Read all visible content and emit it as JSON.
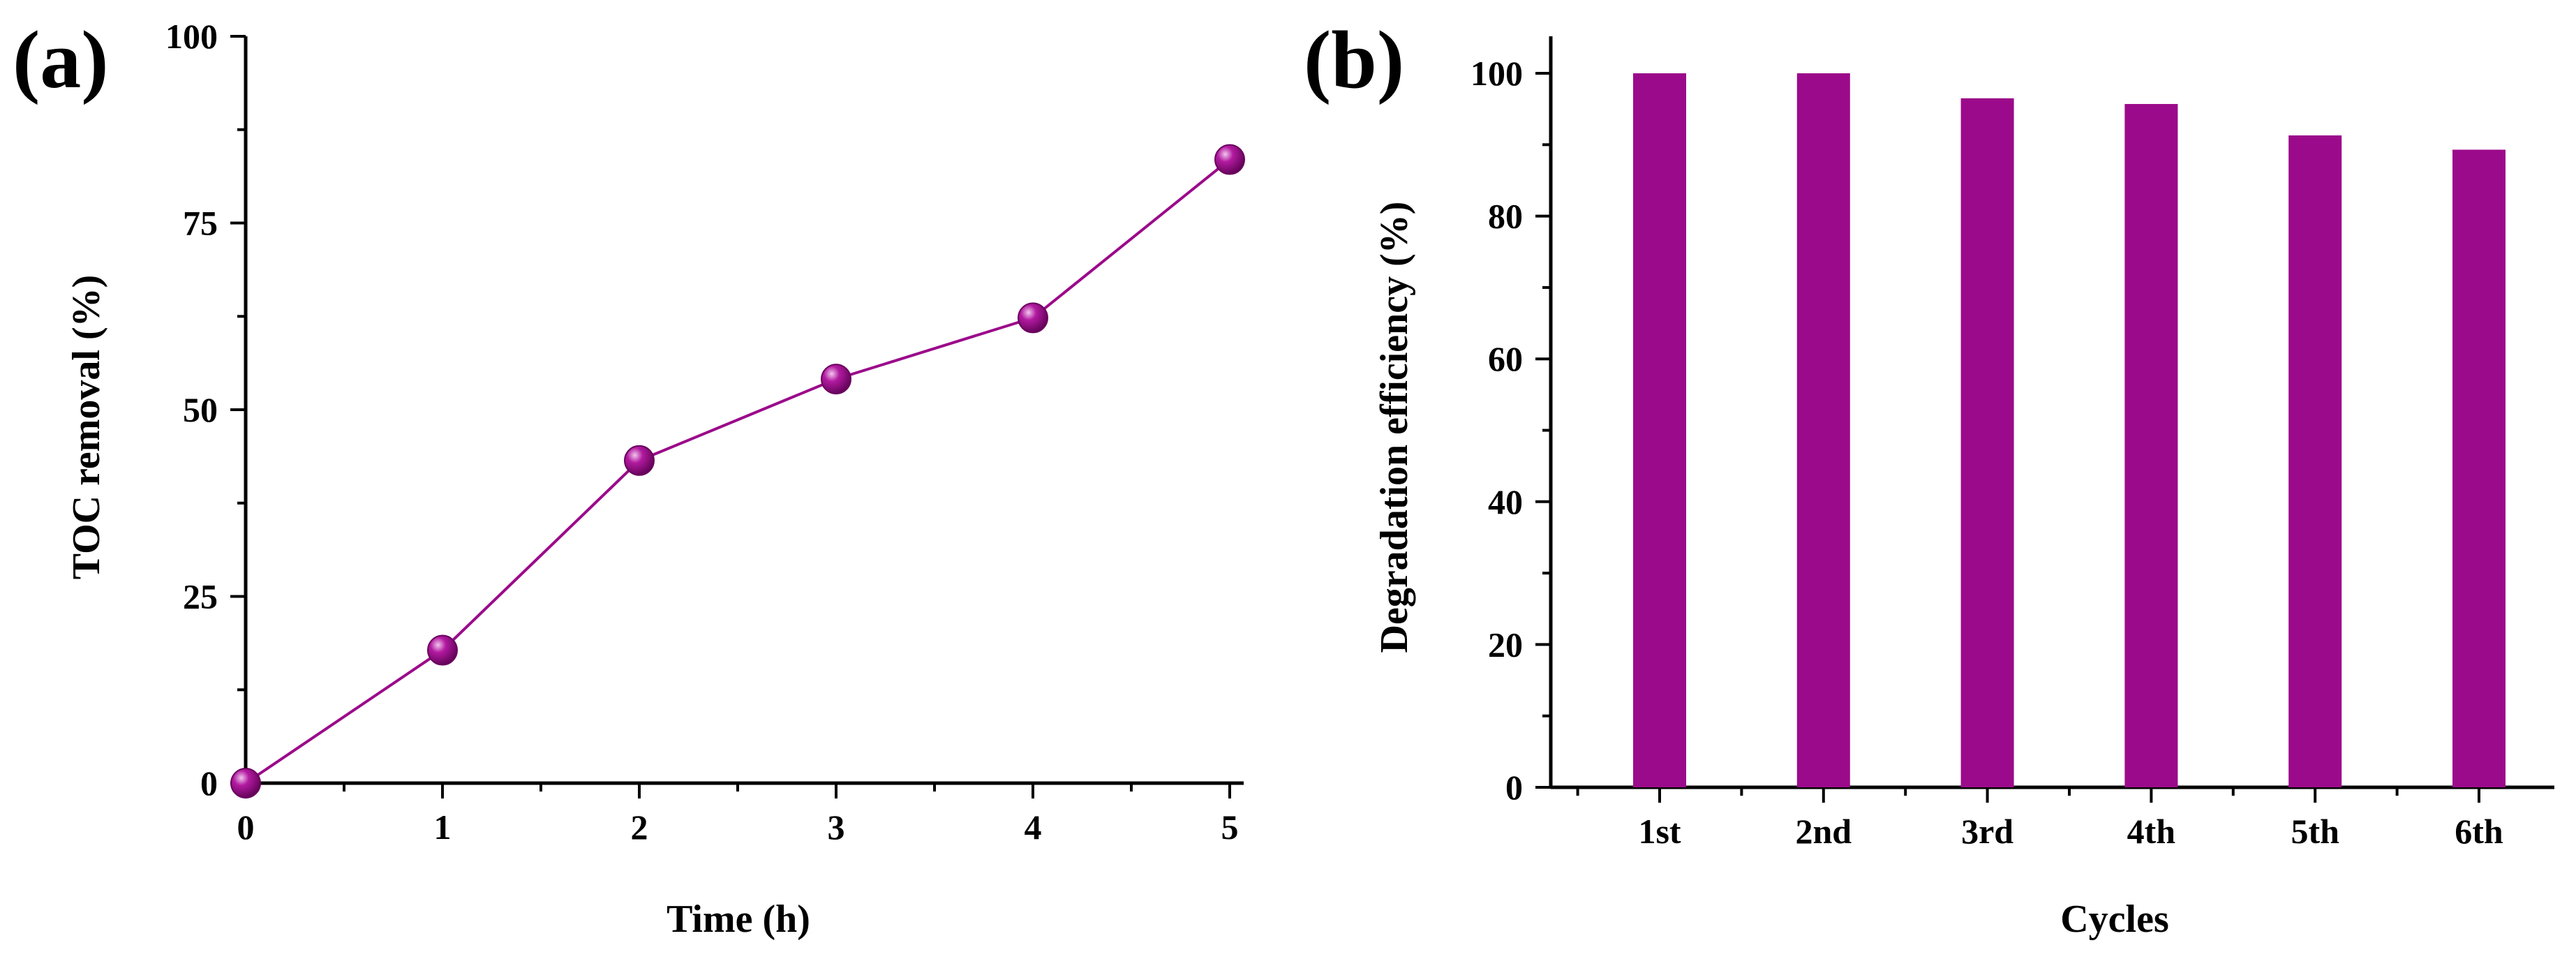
{
  "colors": {
    "series": "#9b0a8a",
    "marker_highlight": "#f2c6ee",
    "marker_shadow": "#5a0050",
    "axis": "#000000"
  },
  "chart_data": [
    {
      "panel": "(a)",
      "type": "line",
      "title": "",
      "xlabel": "Time (h)",
      "ylabel": "TOC removal (%)",
      "x": [
        0,
        1,
        2,
        3,
        4,
        5
      ],
      "series": [
        {
          "name": "TOC removal",
          "values": [
            0,
            17.8,
            43.2,
            54.1,
            62.3,
            83.5
          ]
        }
      ],
      "xlim": [
        0,
        5
      ],
      "ylim": [
        0,
        100
      ],
      "xticks": [
        0,
        1,
        2,
        3,
        4,
        5
      ],
      "yticks": [
        0,
        25,
        50,
        75,
        100
      ],
      "x_tick_labels": [
        "0",
        "1",
        "2",
        "3",
        "4",
        "5"
      ],
      "y_tick_labels": [
        "0",
        "25",
        "50",
        "75",
        "100"
      ],
      "grid": false,
      "marker": "sphere"
    },
    {
      "panel": "(b)",
      "type": "bar",
      "title": "",
      "xlabel": "Cycles",
      "ylabel": "Degradation efficiency (%)",
      "categories": [
        "1st",
        "2nd",
        "3rd",
        "4th",
        "5th",
        "6th"
      ],
      "series": [
        {
          "name": "Degradation efficiency",
          "values": [
            100,
            100,
            96.5,
            95.7,
            91.3,
            89.3
          ]
        }
      ],
      "ylim": [
        0,
        105
      ],
      "yticks": [
        0,
        20,
        40,
        60,
        80,
        100
      ],
      "y_tick_labels": [
        "0",
        "20",
        "40",
        "60",
        "80",
        "100"
      ],
      "grid": false
    }
  ]
}
